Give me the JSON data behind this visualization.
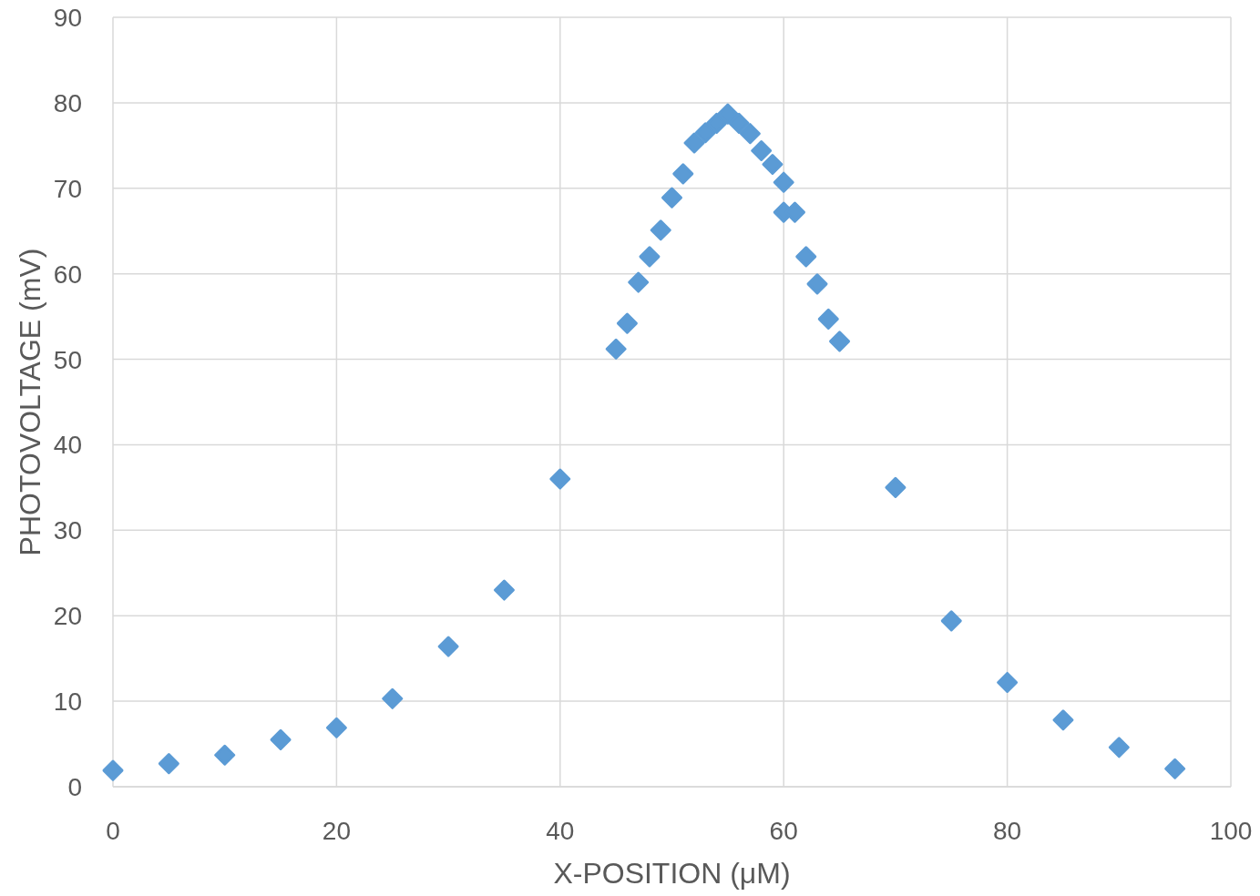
{
  "chart_data": {
    "type": "scatter",
    "xlabel": "X-POSITION (μM)",
    "ylabel": "PHOTOVOLTAGE (mV)",
    "x": [
      0,
      5,
      10,
      15,
      20,
      25,
      30,
      35,
      40,
      45,
      46,
      47,
      48,
      49,
      50,
      51,
      52,
      53,
      54,
      55,
      56,
      57,
      58,
      59,
      60,
      60,
      61,
      62,
      63,
      64,
      65,
      70,
      75,
      80,
      85,
      90,
      95
    ],
    "series": [
      {
        "color": "#5b9bd5",
        "values": [
          1.9,
          2.7,
          3.7,
          5.5,
          6.9,
          10.3,
          16.4,
          23.0,
          36.0,
          51.2,
          54.2,
          59.0,
          62.0,
          65.1,
          68.9,
          71.7,
          75.3,
          76.5,
          77.6,
          78.7,
          77.6,
          76.4,
          74.4,
          72.8,
          70.7,
          67.2,
          67.2,
          62.0,
          58.8,
          54.7,
          52.1,
          35.0,
          19.4,
          12.2,
          7.8,
          4.6,
          2.1
        ]
      }
    ],
    "xlim": [
      0,
      100
    ],
    "xticks": [
      0,
      20,
      40,
      60,
      80,
      100
    ],
    "ylim": [
      0,
      90
    ],
    "yticks": [
      0,
      10,
      20,
      30,
      40,
      50,
      60,
      70,
      80,
      90
    ],
    "grid": true,
    "marker": "diamond"
  }
}
